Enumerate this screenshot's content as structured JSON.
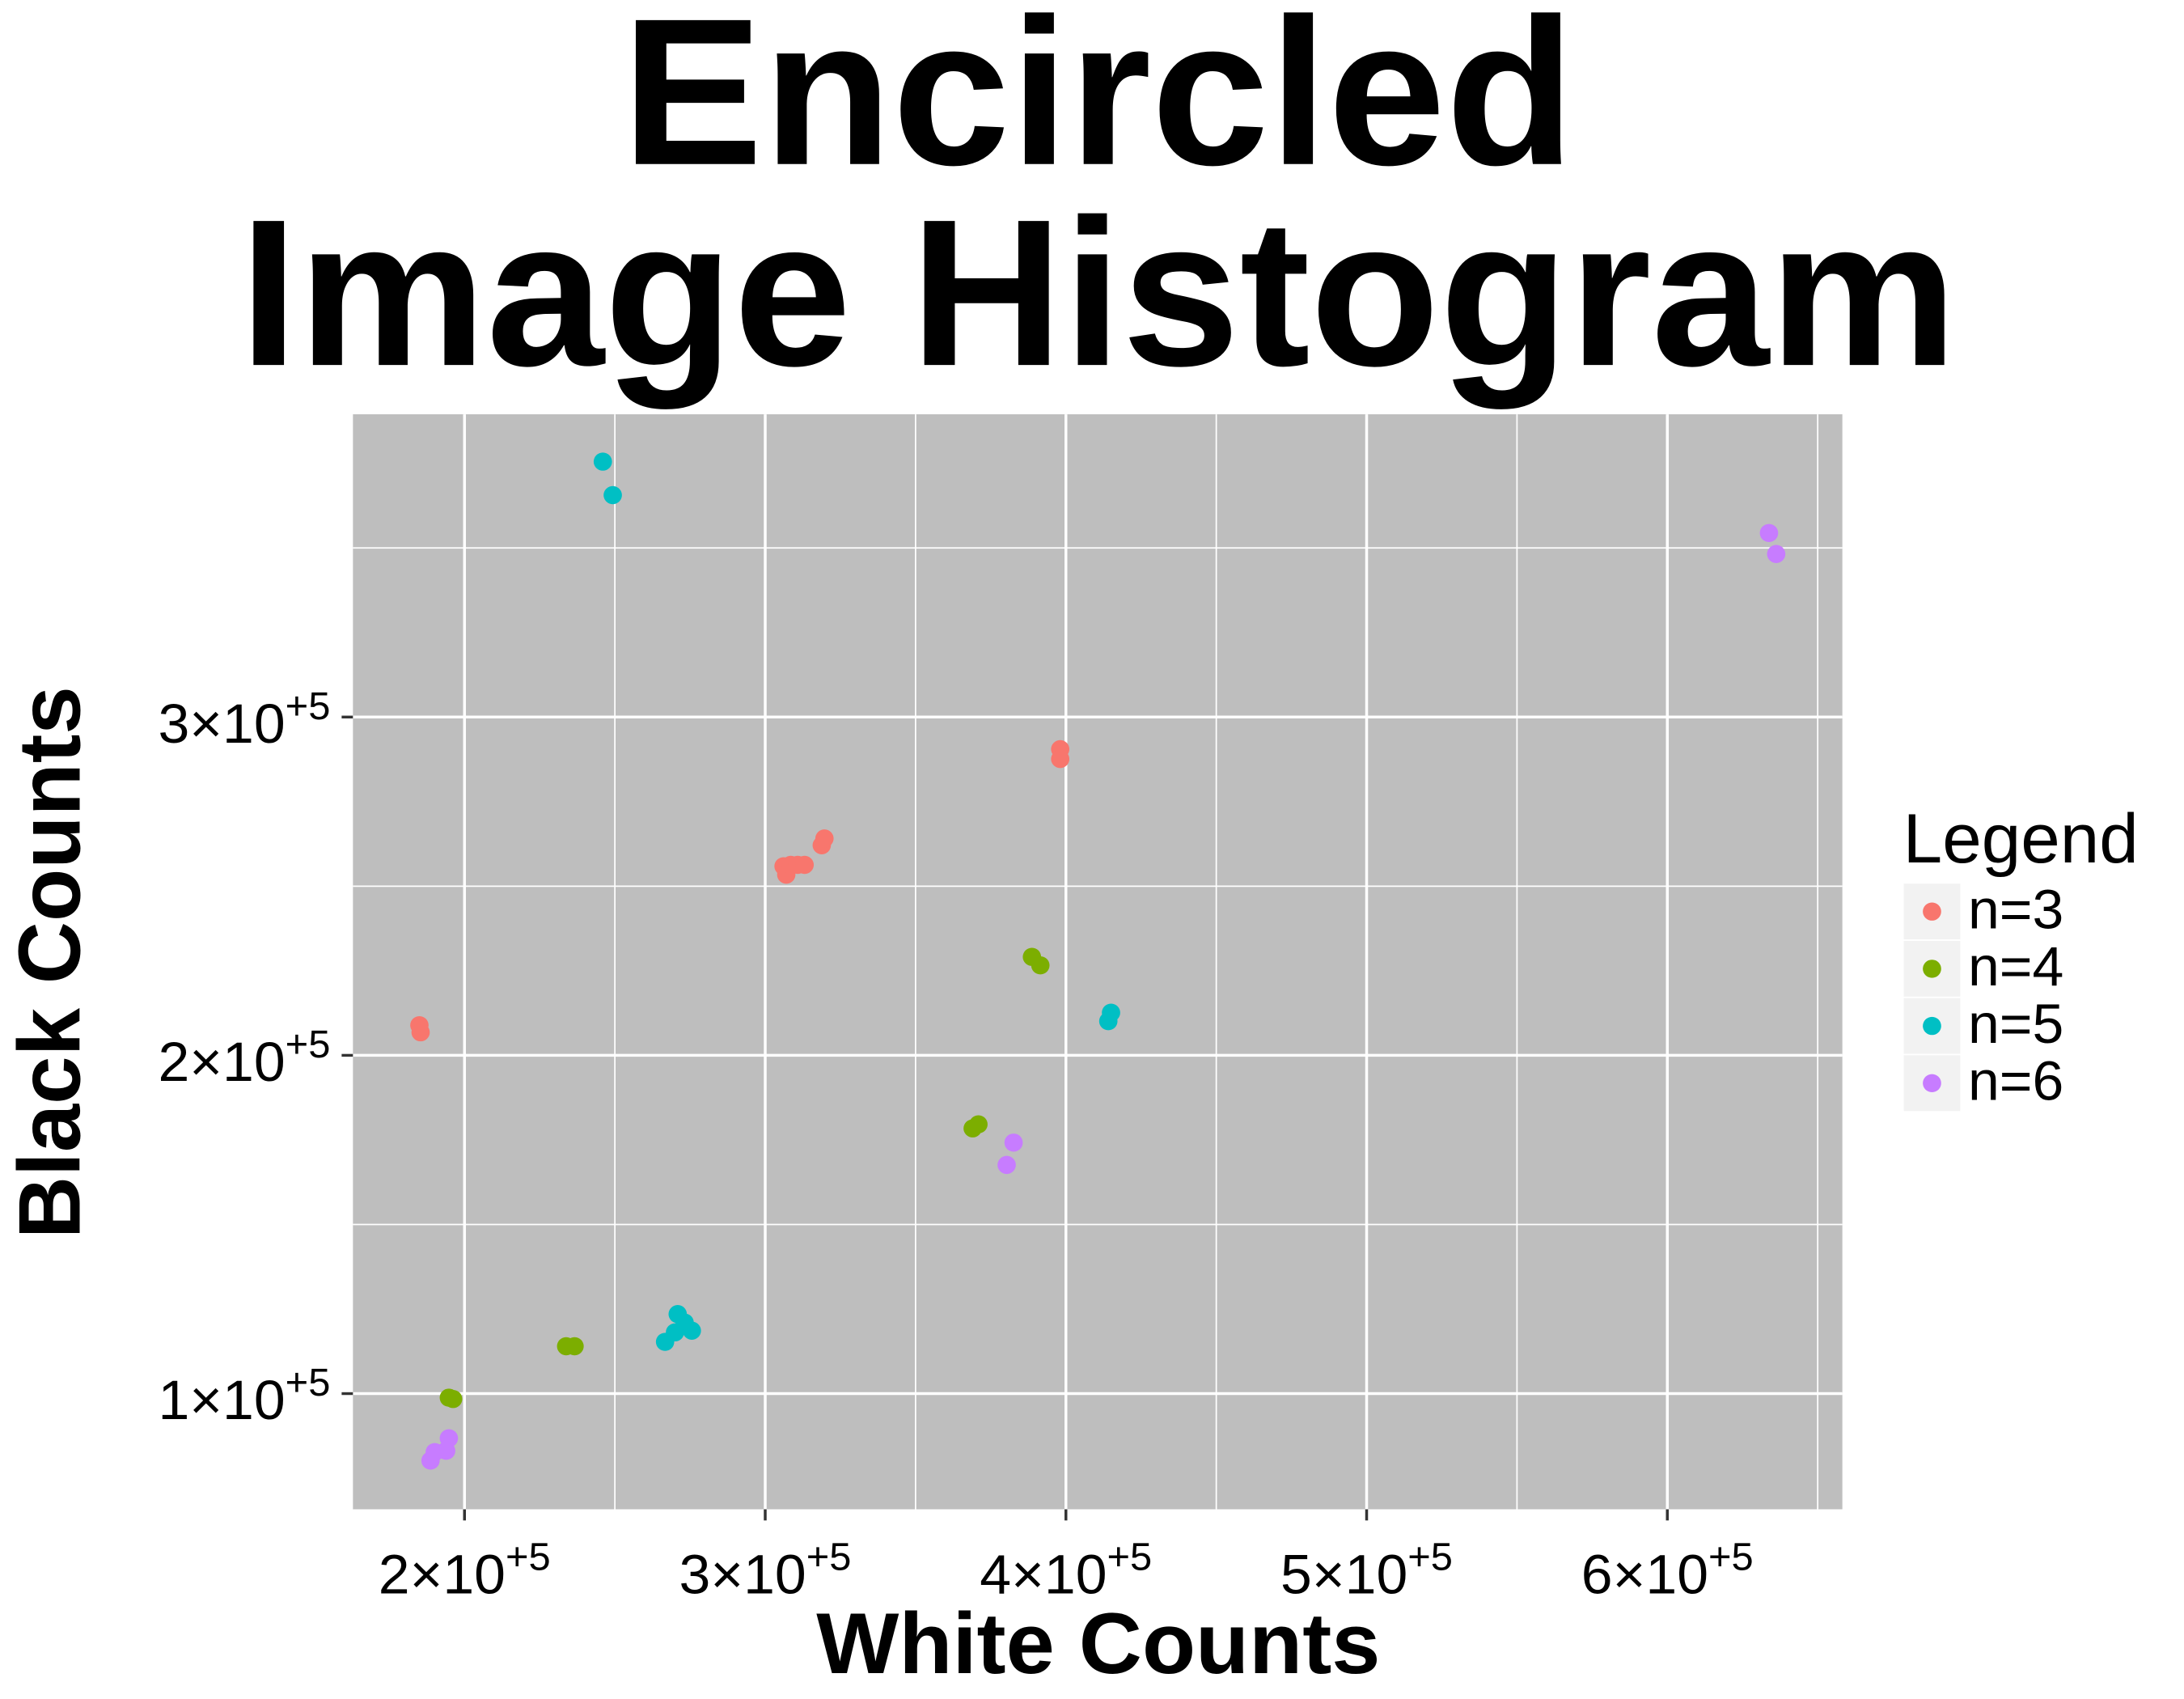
{
  "chart_data": {
    "type": "scatter",
    "title": [
      "Encircled",
      "Image Histogram"
    ],
    "x_label": "White Counts",
    "y_label": "Black Counts",
    "xlim": [
      162900,
      658200
    ],
    "ylim": [
      65800,
      389500
    ],
    "xticks": [
      {
        "value": 200000,
        "label": "2×10+5"
      },
      {
        "value": 300000,
        "label": "3×10+5"
      },
      {
        "value": 400000,
        "label": "4×10+5"
      },
      {
        "value": 500000,
        "label": "5×10+5"
      },
      {
        "value": 600000,
        "label": "6×10+5"
      }
    ],
    "yticks": [
      {
        "value": 100000,
        "label": "1×10+5"
      },
      {
        "value": 200000,
        "label": "2×10+5"
      },
      {
        "value": 300000,
        "label": "3×10+5"
      }
    ],
    "x_minor_ticks": [
      250000,
      350000,
      450000,
      550000,
      650000
    ],
    "y_minor_ticks": [
      150000,
      250000,
      350000
    ],
    "grid": true,
    "background": "#bebebe",
    "legend_title": "Legend",
    "legend_position": "right",
    "series": [
      {
        "name": "n=3",
        "color": "#F8766D",
        "x": [
          185000,
          185400,
          306100,
          307000,
          308500,
          310800,
          313100,
          318800,
          319700,
          398100,
          398100
        ],
        "y": [
          208900,
          206800,
          255900,
          253400,
          256300,
          256300,
          256300,
          262100,
          264100,
          290500,
          287600
        ]
      },
      {
        "name": "n=4",
        "color": "#7CAE00",
        "x": [
          194800,
          196200,
          233800,
          236600,
          369000,
          370900,
          388700,
          391500
        ],
        "y": [
          98800,
          98400,
          114000,
          114000,
          178400,
          179600,
          229100,
          226600
        ]
      },
      {
        "name": "n=5",
        "color": "#00BFC4",
        "x": [
          246000,
          249300,
          266700,
          270900,
          270000,
          273200,
          275600,
          414100,
          415000
        ],
        "y": [
          375500,
          365600,
          115300,
          123500,
          118100,
          121000,
          118600,
          210100,
          212600
        ]
      },
      {
        "name": "n=6",
        "color": "#C77CFF",
        "x": [
          188700,
          190100,
          193900,
          194800,
          380300,
          382600,
          633800,
          636200
        ],
        "y": [
          80200,
          82700,
          83100,
          86800,
          167600,
          174200,
          354400,
          348200
        ]
      }
    ]
  }
}
